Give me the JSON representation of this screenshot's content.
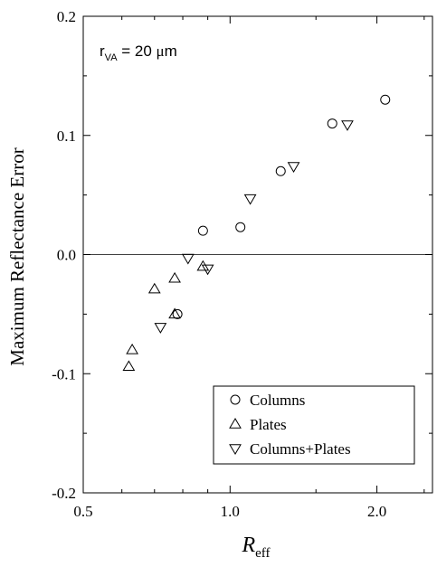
{
  "chart_data": {
    "type": "scatter",
    "title": "",
    "xlabel_main": "R",
    "xlabel_sub": "eff",
    "ylabel": "Maximum Reflectance Error",
    "x_scale": "log",
    "xlim": [
      0.5,
      2.6
    ],
    "ylim": [
      -0.2,
      0.2
    ],
    "x_ticks": [
      0.5,
      1.0,
      2.0
    ],
    "x_tick_labels": [
      "0.5",
      "1.0",
      "2.0"
    ],
    "y_ticks": [
      -0.2,
      -0.1,
      0.0,
      0.1,
      0.2
    ],
    "y_tick_labels": [
      "-0.2",
      "-0.1",
      "0.0",
      "0.1",
      "0.2"
    ],
    "reference_line_y": 0.0,
    "annotation": {
      "main": "r",
      "sub": "VA",
      "rest": " = 20 ",
      "mu": "μ",
      "unit": "m"
    },
    "legend_position": "bottom-right",
    "series": [
      {
        "name": "Columns",
        "marker": "circle",
        "x": [
          0.78,
          0.88,
          1.05,
          1.27,
          1.62,
          2.08
        ],
        "y": [
          -0.05,
          0.02,
          0.023,
          0.07,
          0.11,
          0.13
        ]
      },
      {
        "name": "Plates",
        "marker": "triangle-up",
        "x": [
          0.62,
          0.63,
          0.7,
          0.77,
          0.77,
          0.88
        ],
        "y": [
          -0.094,
          -0.08,
          -0.029,
          -0.05,
          -0.02,
          -0.01
        ]
      },
      {
        "name": "Columns+Plates",
        "marker": "triangle-down",
        "x": [
          0.72,
          0.82,
          0.9,
          1.1,
          1.35,
          1.74
        ],
        "y": [
          -0.061,
          -0.003,
          -0.012,
          0.047,
          0.074,
          0.109
        ]
      }
    ]
  }
}
